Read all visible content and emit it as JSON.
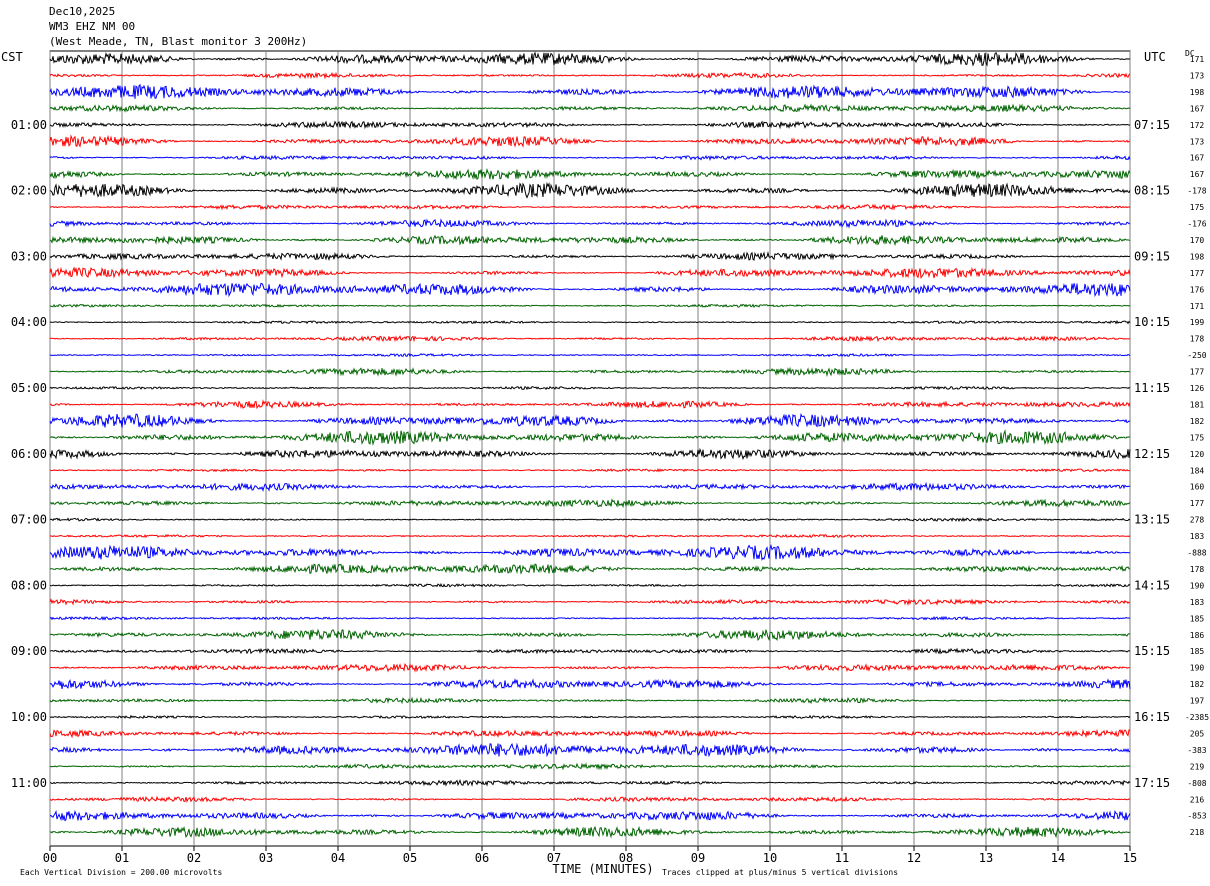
{
  "header": {
    "date": "Dec10,2025",
    "station": "WM3 EHZ NM 00",
    "location": "(West Meade, TN, Blast monitor 3 200Hz)"
  },
  "chart_data": {
    "type": "line",
    "title": "",
    "xlabel": "TIME (MINUTES)",
    "x_ticks": [
      "00",
      "01",
      "02",
      "03",
      "04",
      "05",
      "06",
      "07",
      "08",
      "09",
      "10",
      "11",
      "12",
      "13",
      "14",
      "15"
    ],
    "xlim": [
      0,
      15
    ],
    "left_axis_label": "CST",
    "right_axis_label": "UTC",
    "dc_label": "DC",
    "left_hour_labels": [
      "01:00",
      "02:00",
      "03:00",
      "04:00",
      "05:00",
      "06:00",
      "07:00",
      "08:00",
      "09:00",
      "10:00",
      "11:00"
    ],
    "right_hour_labels": [
      "07:15",
      "08:15",
      "09:15",
      "10:15",
      "11:15",
      "12:15",
      "13:15",
      "14:15",
      "15:15",
      "16:15",
      "17:15"
    ],
    "trace_colors": [
      "#000000",
      "#ff0000",
      "#0000ff",
      "#006400"
    ],
    "num_traces": 48,
    "dc_offsets": [
      "171",
      "173",
      "198",
      "167",
      "172",
      "173",
      "167",
      "167",
      "-178",
      "175",
      "-176",
      "170",
      "198",
      "177",
      "176",
      "171",
      "199",
      "178",
      "-250",
      "177",
      "126",
      "181",
      "182",
      "175",
      "120",
      "184",
      "160",
      "177",
      "278",
      "183",
      "-888",
      "178",
      "190",
      "183",
      "185",
      "186",
      "185",
      "190",
      "182",
      "197",
      "-2385",
      "205",
      "-383",
      "219",
      "-808",
      "216",
      "-853",
      "218"
    ],
    "footer_left": "Each Vertical Division =  200.00 microvolts",
    "footer_right": "Traces clipped at plus/minus 5 vertical divisions",
    "grid": true
  }
}
